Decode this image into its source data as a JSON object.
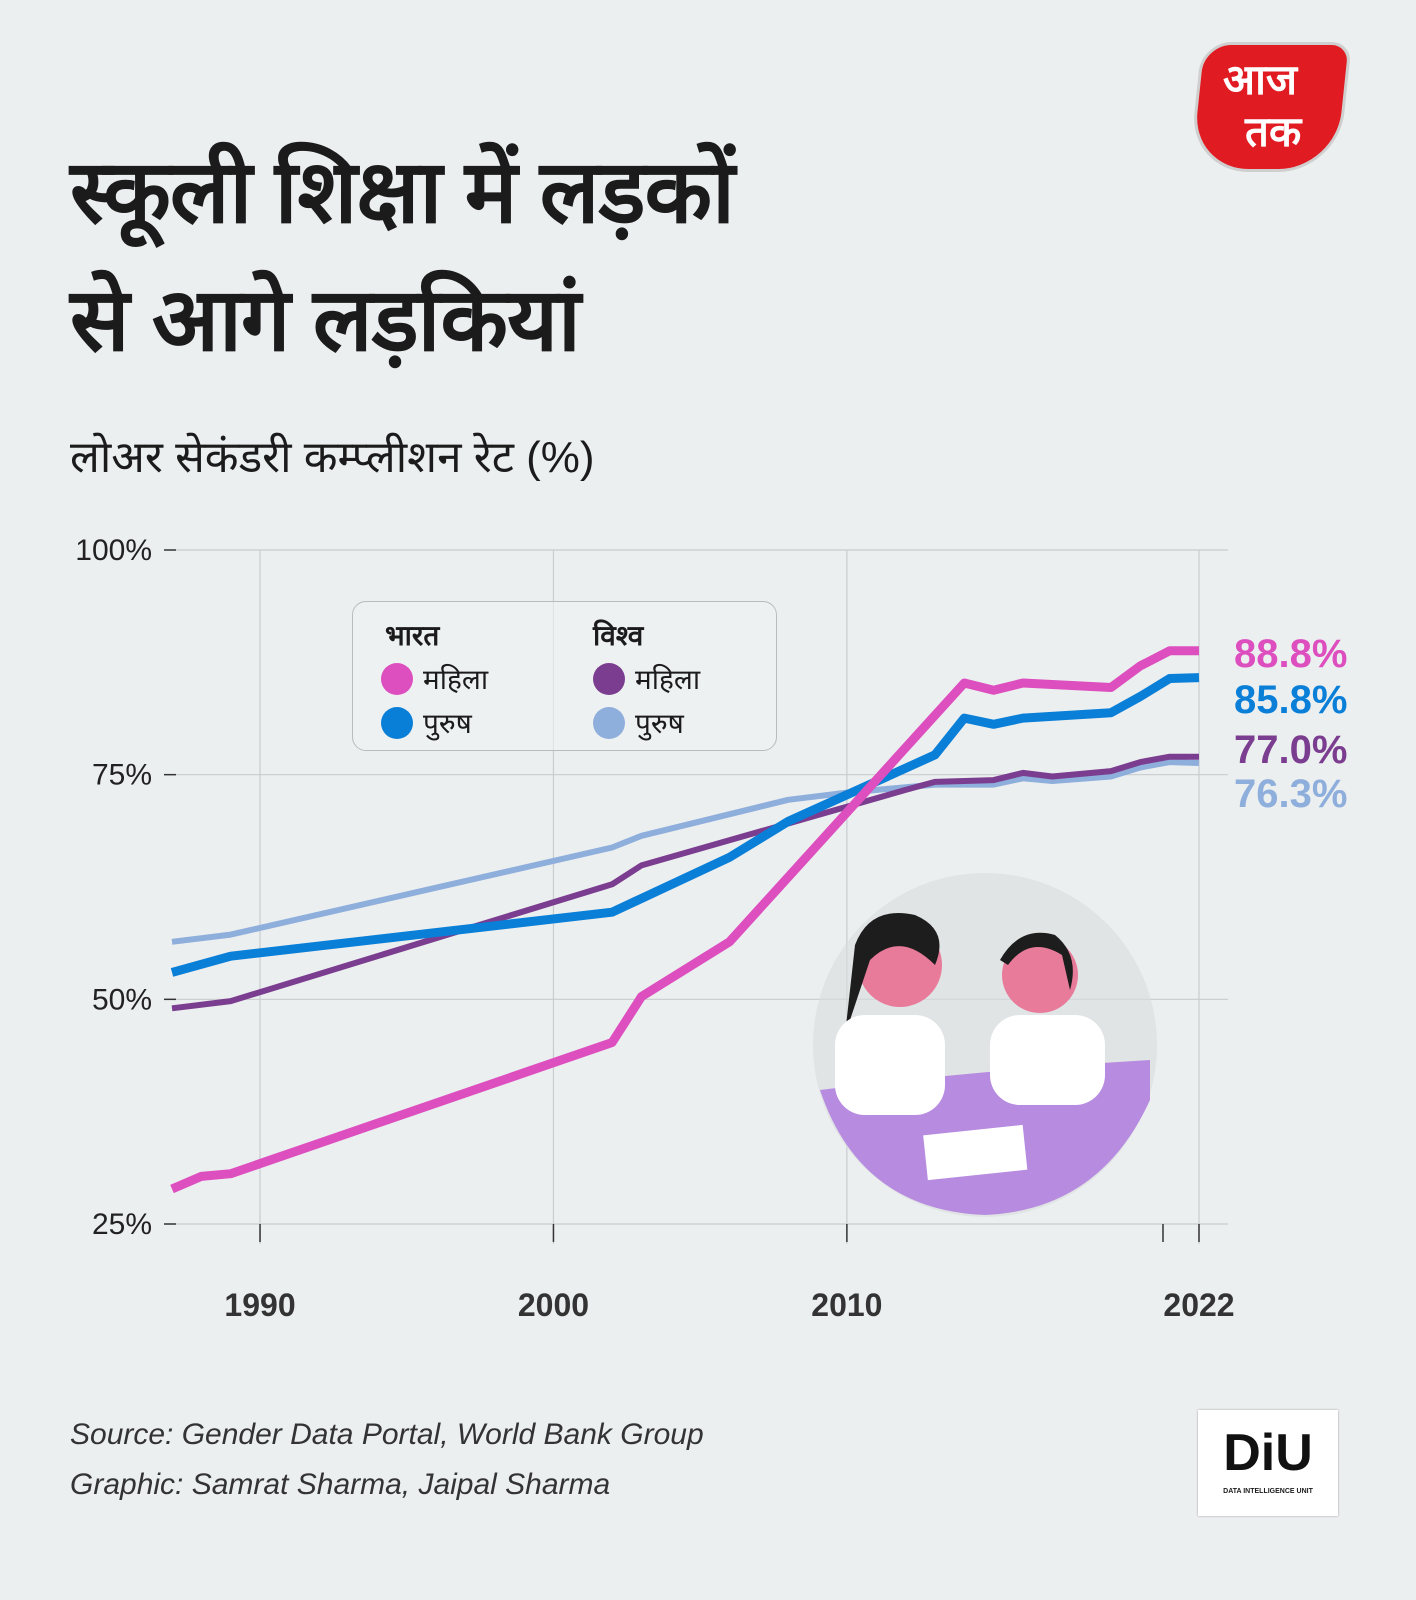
{
  "header": {
    "title_line1": "स्कूली शिक्षा में लड़कों",
    "title_line2": "से आगे लड़कियां",
    "subtitle": "लोअर सेकंडरी कम्प्लीशन रेट (%)"
  },
  "logos": {
    "aajtak_top": "आज",
    "aajtak_bottom": "तक",
    "diu": "DiU",
    "diu_sub": "DATA INTELLIGENCE UNIT"
  },
  "legend": {
    "group1": "भारत",
    "group2": "विश्व",
    "female": "महिला",
    "male": "पुरुष"
  },
  "footer": {
    "source": "Source: Gender Data Portal, World Bank Group",
    "graphic": "Graphic: Samrat Sharma, Jaipal Sharma"
  },
  "chart_data": {
    "type": "line",
    "title": "लोअर सेकंडरी कम्प्लीशन रेट (%)",
    "xlabel": "",
    "ylabel": "",
    "xlim": [
      1987,
      2022
    ],
    "ylim": [
      25,
      100
    ],
    "x_ticks": [
      1990,
      2000,
      2010,
      2022
    ],
    "y_ticks": [
      {
        "v": 100,
        "label": "100%"
      },
      {
        "v": 75,
        "label": "75%"
      },
      {
        "v": 50,
        "label": "50%"
      },
      {
        "v": 25,
        "label": "25%"
      }
    ],
    "grid": true,
    "legend_position": "top-left",
    "series": [
      {
        "name": "भारत महिला",
        "color": "#dd4fbf",
        "end_label": "88.8%",
        "x": [
          1987,
          1988,
          1989,
          2002,
          2003,
          2006,
          2014,
          2015,
          2016,
          2019,
          2020,
          2021,
          2022
        ],
        "y": [
          28.9,
          30.3,
          30.6,
          45.2,
          50.3,
          56.4,
          85.2,
          84.4,
          85.2,
          84.7,
          87.1,
          88.8,
          88.8
        ]
      },
      {
        "name": "भारत पुरुष",
        "color": "#0a7fd8",
        "end_label": "85.8%",
        "x": [
          1987,
          1988,
          1989,
          2002,
          2006,
          2008,
          2013,
          2014,
          2015,
          2016,
          2019,
          2020,
          2021,
          2022
        ],
        "y": [
          53.0,
          53.9,
          54.8,
          59.7,
          65.8,
          69.8,
          77.2,
          81.3,
          80.6,
          81.3,
          81.9,
          83.7,
          85.7,
          85.8
        ]
      },
      {
        "name": "विश्व महिला",
        "color": "#7b3d8f",
        "end_label": "77.0%",
        "x": [
          1987,
          1989,
          2002,
          2003,
          2012,
          2013,
          2015,
          2016,
          2017,
          2019,
          2020,
          2021,
          2022
        ],
        "y": [
          49.0,
          49.8,
          62.8,
          64.9,
          73.3,
          74.2,
          74.4,
          75.2,
          74.8,
          75.4,
          76.4,
          77.0,
          77.0
        ]
      },
      {
        "name": "विश्व पुरुष",
        "color": "#8eaedc",
        "end_label": "76.3%",
        "x": [
          1987,
          1989,
          2002,
          2003,
          2008,
          2010,
          2013,
          2015,
          2016,
          2017,
          2019,
          2020,
          2021,
          2022
        ],
        "y": [
          56.4,
          57.2,
          66.9,
          68.2,
          72.2,
          73.0,
          73.9,
          73.9,
          74.6,
          74.3,
          74.8,
          75.8,
          76.4,
          76.3
        ]
      }
    ]
  }
}
